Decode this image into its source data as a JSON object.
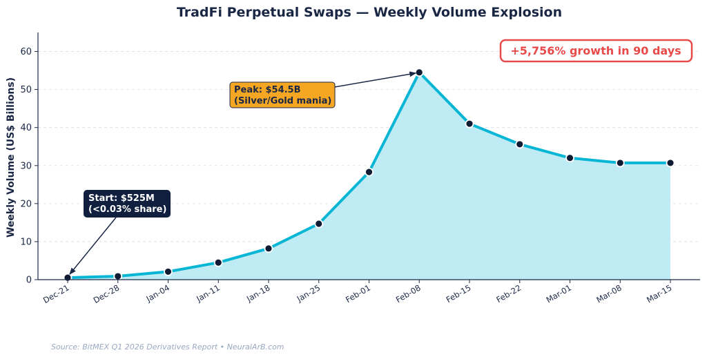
{
  "chart_data": {
    "type": "area",
    "title": "TradFi Perpetual Swaps — Weekly Volume Explosion",
    "ylabel": "Weekly Volume (US$ Billions)",
    "xlabel": "",
    "ylim": [
      0,
      65
    ],
    "yticks": [
      "0",
      "10",
      "20",
      "30",
      "40",
      "50",
      "60"
    ],
    "grid": true,
    "categories": [
      "Dec-21",
      "Dec-28",
      "Jan-04",
      "Jan-11",
      "Jan-18",
      "Jan-25",
      "Feb-01",
      "Feb-08",
      "Feb-15",
      "Feb-22",
      "Mar-01",
      "Mar-08",
      "Mar-15"
    ],
    "values": [
      0.525,
      0.9,
      2.1,
      4.5,
      8.2,
      14.7,
      28.3,
      54.5,
      41.0,
      35.6,
      32.0,
      30.7,
      30.7
    ],
    "colors": {
      "line": "#06b6d4",
      "fill": "#bfebf4",
      "marker": "#0f1a33",
      "axis": "#1a2744"
    },
    "annotations": {
      "start": {
        "line1": "Start: $525M",
        "line2": "(<0.03% share)",
        "point_index": 0
      },
      "peak": {
        "line1": "Peak: $54.5B",
        "line2": "(Silver/Gold mania)",
        "point_index": 7
      },
      "growth": "+5,756% growth in 90 days"
    },
    "source": "Source: BitMEX Q1 2026 Derivatives Report  •  NeuralArB.com"
  }
}
